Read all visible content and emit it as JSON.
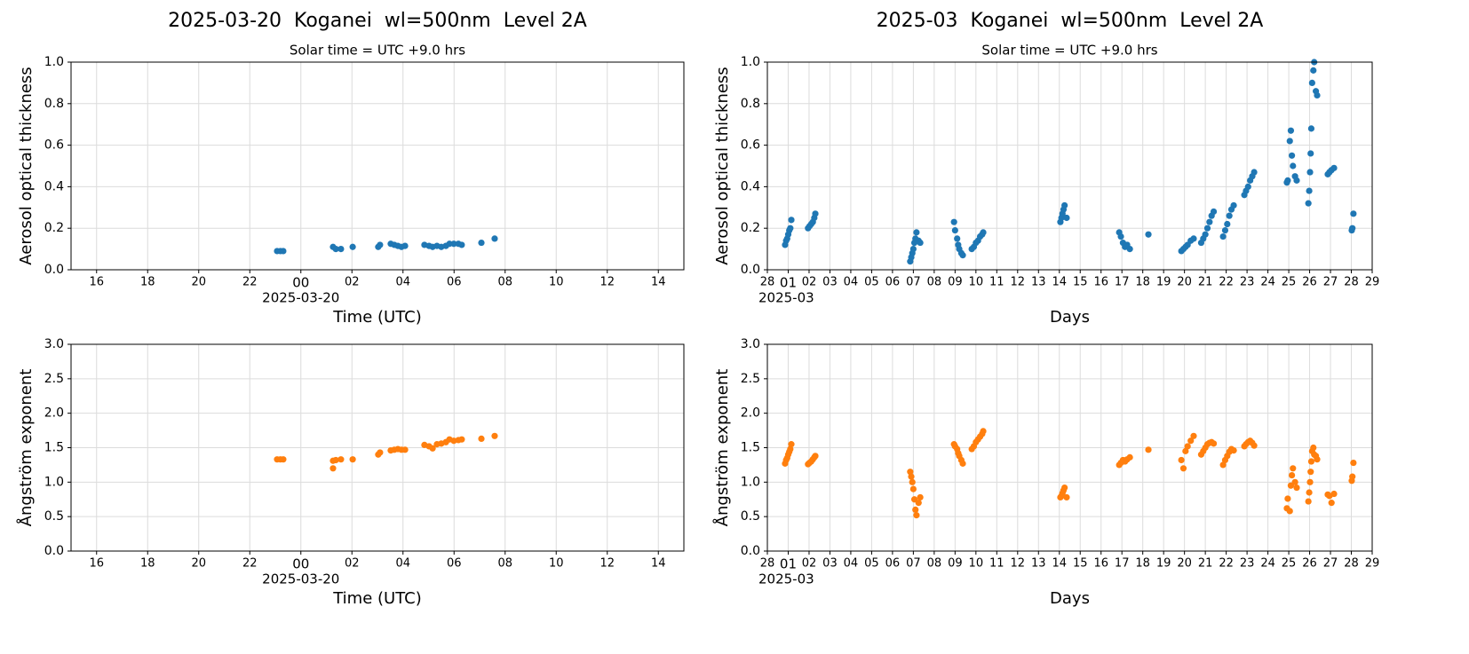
{
  "chart_data": [
    {
      "type": "scatter",
      "title": "2025-03-20  Koganei  wl=500nm  Level 2A",
      "subtitle": "Solar time = UTC +9.0 hrs",
      "x_label": "Time (UTC)",
      "x_offset_label": "2025-03-20",
      "y_label": "Aerosol optical thickness",
      "color": "#1f77b4",
      "grid": true,
      "x": [
        -0.93,
        -0.8,
        -0.69,
        1.26,
        1.37,
        1.57,
        2.03,
        3.03,
        3.1,
        3.52,
        3.66,
        3.8,
        3.94,
        4.08,
        4.84,
        5.02,
        5.16,
        5.33,
        5.5,
        5.68,
        5.82,
        5.99,
        6.17,
        6.3,
        7.07,
        7.59
      ],
      "values": [
        0.09,
        0.09,
        0.09,
        0.11,
        0.1,
        0.1,
        0.11,
        0.11,
        0.12,
        0.125,
        0.12,
        0.115,
        0.11,
        0.115,
        0.12,
        0.115,
        0.11,
        0.115,
        0.11,
        0.115,
        0.125,
        0.125,
        0.125,
        0.12,
        0.13,
        0.15
      ],
      "xlim": [
        -9,
        15
      ],
      "xticks": [
        {
          "value": -8,
          "label": "16"
        },
        {
          "value": -6,
          "label": "18"
        },
        {
          "value": -4,
          "label": "20"
        },
        {
          "value": -2,
          "label": "22"
        },
        {
          "value": 0,
          "label": "00"
        },
        {
          "value": 2,
          "label": "02"
        },
        {
          "value": 4,
          "label": "04"
        },
        {
          "value": 6,
          "label": "06"
        },
        {
          "value": 8,
          "label": "08"
        },
        10,
        12,
        14
      ],
      "ylim": [
        0,
        1
      ],
      "yticks": [
        {
          "value": 0,
          "label": "0.0"
        },
        0.2,
        0.4,
        0.6,
        0.8,
        {
          "value": 1,
          "label": "1.0"
        }
      ]
    },
    {
      "type": "scatter",
      "title": "2025-03  Koganei  wl=500nm  Level 2A",
      "subtitle": "Solar time = UTC +9.0 hrs",
      "x_label": "Days",
      "x_offset_label": "2025-03",
      "y_label": "Aerosol optical thickness",
      "color": "#1f77b4",
      "grid": true,
      "x": [
        0.85,
        0.9,
        0.95,
        1.0,
        1.05,
        1.1,
        1.15,
        1.95,
        2.02,
        2.1,
        2.18,
        2.25,
        2.3,
        6.85,
        6.9,
        6.95,
        7.0,
        7.05,
        7.1,
        7.15,
        7.25,
        7.33,
        8.95,
        9.0,
        9.1,
        9.15,
        9.2,
        9.3,
        9.37,
        9.8,
        9.9,
        10.0,
        10.1,
        10.2,
        10.3,
        10.35,
        14.05,
        14.1,
        14.15,
        14.2,
        14.25,
        14.35,
        16.87,
        16.95,
        17.05,
        17.15,
        17.25,
        17.38,
        18.27,
        19.85,
        19.95,
        20.05,
        20.15,
        20.3,
        20.44,
        20.8,
        20.9,
        21.0,
        21.1,
        21.2,
        21.3,
        21.4,
        21.85,
        21.95,
        22.05,
        22.15,
        22.25,
        22.36,
        22.87,
        22.95,
        23.05,
        23.15,
        23.25,
        23.34,
        24.91,
        24.95,
        25.05,
        25.1,
        25.15,
        25.2,
        25.3,
        25.38,
        25.94,
        25.98,
        26.02,
        26.05,
        26.08,
        26.12,
        26.18,
        26.22,
        26.3,
        26.36,
        26.87,
        26.95,
        27.05,
        27.17,
        28.02,
        28.05,
        28.1
      ],
      "values": [
        0.12,
        0.14,
        0.15,
        0.17,
        0.19,
        0.2,
        0.24,
        0.2,
        0.21,
        0.22,
        0.23,
        0.25,
        0.27,
        0.04,
        0.06,
        0.08,
        0.1,
        0.13,
        0.15,
        0.18,
        0.14,
        0.13,
        0.23,
        0.19,
        0.15,
        0.12,
        0.1,
        0.08,
        0.07,
        0.1,
        0.11,
        0.13,
        0.14,
        0.16,
        0.17,
        0.18,
        0.23,
        0.25,
        0.27,
        0.29,
        0.31,
        0.25,
        0.18,
        0.16,
        0.13,
        0.11,
        0.12,
        0.1,
        0.17,
        0.09,
        0.1,
        0.11,
        0.12,
        0.14,
        0.15,
        0.13,
        0.15,
        0.17,
        0.2,
        0.23,
        0.26,
        0.28,
        0.16,
        0.19,
        0.22,
        0.26,
        0.29,
        0.31,
        0.36,
        0.38,
        0.4,
        0.43,
        0.45,
        0.47,
        0.42,
        0.43,
        0.62,
        0.67,
        0.55,
        0.5,
        0.45,
        0.43,
        0.32,
        0.38,
        0.47,
        0.56,
        0.68,
        0.9,
        0.96,
        1.0,
        0.86,
        0.84,
        0.46,
        0.47,
        0.48,
        0.49,
        0.19,
        0.2,
        0.27
      ],
      "xlim": [
        0,
        29
      ],
      "xticks": [
        {
          "value": 0,
          "label": "28"
        },
        {
          "value": 1,
          "label": "01"
        },
        {
          "value": 2,
          "label": "02"
        },
        {
          "value": 3,
          "label": "03"
        },
        {
          "value": 4,
          "label": "04"
        },
        {
          "value": 5,
          "label": "05"
        },
        {
          "value": 6,
          "label": "06"
        },
        {
          "value": 7,
          "label": "07"
        },
        {
          "value": 8,
          "label": "08"
        },
        {
          "value": 9,
          "label": "09"
        },
        10,
        11,
        12,
        13,
        14,
        15,
        16,
        17,
        18,
        19,
        20,
        21,
        22,
        23,
        24,
        25,
        26,
        27,
        28,
        29
      ],
      "ylim": [
        0,
        1
      ],
      "yticks": [
        {
          "value": 0,
          "label": "0.0"
        },
        0.2,
        0.4,
        0.6,
        0.8,
        {
          "value": 1,
          "label": "1.0"
        }
      ]
    },
    {
      "type": "scatter",
      "x_label": "Time (UTC)",
      "x_offset_label": "2025-03-20",
      "y_label": "Ångström exponent",
      "color": "#ff7f0e",
      "grid": true,
      "x": [
        -0.93,
        -0.8,
        -0.69,
        1.26,
        1.26,
        1.37,
        1.57,
        2.03,
        3.03,
        3.1,
        3.52,
        3.66,
        3.8,
        3.94,
        4.08,
        4.84,
        5.02,
        5.16,
        5.33,
        5.5,
        5.68,
        5.82,
        5.99,
        6.17,
        6.3,
        7.07,
        7.59
      ],
      "values": [
        1.33,
        1.33,
        1.33,
        1.31,
        1.2,
        1.32,
        1.33,
        1.33,
        1.4,
        1.43,
        1.46,
        1.47,
        1.48,
        1.47,
        1.47,
        1.54,
        1.52,
        1.49,
        1.55,
        1.56,
        1.58,
        1.62,
        1.6,
        1.61,
        1.62,
        1.63,
        1.67
      ],
      "xlim": [
        -9,
        15
      ],
      "xticks": [
        {
          "value": -8,
          "label": "16"
        },
        {
          "value": -6,
          "label": "18"
        },
        {
          "value": -4,
          "label": "20"
        },
        {
          "value": -2,
          "label": "22"
        },
        {
          "value": 0,
          "label": "00"
        },
        {
          "value": 2,
          "label": "02"
        },
        {
          "value": 4,
          "label": "04"
        },
        {
          "value": 6,
          "label": "06"
        },
        {
          "value": 8,
          "label": "08"
        },
        10,
        12,
        14
      ],
      "ylim": [
        0,
        3
      ],
      "yticks": [
        {
          "value": 0,
          "label": "0.0"
        },
        0.5,
        {
          "value": 1,
          "label": "1.0"
        },
        1.5,
        {
          "value": 2,
          "label": "2.0"
        },
        2.5,
        {
          "value": 3,
          "label": "3.0"
        }
      ]
    },
    {
      "type": "scatter",
      "x_label": "Days",
      "x_offset_label": "2025-03",
      "y_label": "Ångström exponent",
      "color": "#ff7f0e",
      "grid": true,
      "x": [
        0.85,
        0.9,
        0.95,
        1.0,
        1.05,
        1.1,
        1.15,
        1.95,
        2.02,
        2.1,
        2.18,
        2.25,
        2.3,
        6.85,
        6.9,
        6.95,
        7.0,
        7.05,
        7.1,
        7.15,
        7.25,
        7.33,
        8.95,
        9.0,
        9.1,
        9.15,
        9.2,
        9.3,
        9.37,
        9.8,
        9.9,
        10.0,
        10.1,
        10.2,
        10.3,
        10.35,
        14.05,
        14.1,
        14.15,
        14.2,
        14.25,
        14.35,
        16.87,
        16.95,
        17.05,
        17.15,
        17.25,
        17.38,
        18.27,
        19.85,
        19.95,
        20.05,
        20.15,
        20.3,
        20.44,
        20.8,
        20.9,
        21.0,
        21.1,
        21.2,
        21.3,
        21.4,
        21.85,
        21.95,
        22.05,
        22.15,
        22.25,
        22.36,
        22.87,
        22.95,
        23.05,
        23.15,
        23.25,
        23.34,
        24.91,
        24.95,
        25.05,
        25.1,
        25.15,
        25.2,
        25.3,
        25.38,
        25.94,
        25.98,
        26.02,
        26.05,
        26.08,
        26.12,
        26.18,
        26.22,
        26.3,
        26.36,
        26.87,
        26.95,
        27.05,
        27.17,
        28.02,
        28.05,
        28.1
      ],
      "values": [
        1.27,
        1.32,
        1.35,
        1.4,
        1.44,
        1.48,
        1.55,
        1.26,
        1.28,
        1.3,
        1.33,
        1.36,
        1.38,
        1.15,
        1.08,
        1.0,
        0.9,
        0.75,
        0.6,
        0.52,
        0.7,
        0.78,
        1.55,
        1.52,
        1.48,
        1.42,
        1.38,
        1.32,
        1.27,
        1.48,
        1.52,
        1.58,
        1.62,
        1.66,
        1.7,
        1.74,
        0.78,
        0.8,
        0.84,
        0.88,
        0.92,
        0.78,
        1.25,
        1.28,
        1.32,
        1.3,
        1.33,
        1.36,
        1.47,
        1.32,
        1.2,
        1.45,
        1.52,
        1.6,
        1.67,
        1.4,
        1.45,
        1.5,
        1.55,
        1.57,
        1.58,
        1.56,
        1.25,
        1.32,
        1.38,
        1.44,
        1.48,
        1.46,
        1.52,
        1.55,
        1.58,
        1.6,
        1.57,
        1.53,
        0.62,
        0.76,
        0.58,
        0.95,
        1.1,
        1.2,
        1.0,
        0.92,
        0.72,
        0.85,
        1.0,
        1.15,
        1.3,
        1.45,
        1.5,
        1.4,
        1.38,
        1.33,
        0.82,
        0.8,
        0.7,
        0.83,
        1.02,
        1.08,
        1.28
      ],
      "xlim": [
        0,
        29
      ],
      "xticks": [
        {
          "value": 0,
          "label": "28"
        },
        {
          "value": 1,
          "label": "01"
        },
        {
          "value": 2,
          "label": "02"
        },
        {
          "value": 3,
          "label": "03"
        },
        {
          "value": 4,
          "label": "04"
        },
        {
          "value": 5,
          "label": "05"
        },
        {
          "value": 6,
          "label": "06"
        },
        {
          "value": 7,
          "label": "07"
        },
        {
          "value": 8,
          "label": "08"
        },
        {
          "value": 9,
          "label": "09"
        },
        10,
        11,
        12,
        13,
        14,
        15,
        16,
        17,
        18,
        19,
        20,
        21,
        22,
        23,
        24,
        25,
        26,
        27,
        28,
        29
      ],
      "ylim": [
        0,
        3
      ],
      "yticks": [
        {
          "value": 0,
          "label": "0.0"
        },
        0.5,
        {
          "value": 1,
          "label": "1.0"
        },
        1.5,
        {
          "value": 2,
          "label": "2.0"
        },
        2.5,
        {
          "value": 3,
          "label": "3.0"
        }
      ]
    }
  ]
}
